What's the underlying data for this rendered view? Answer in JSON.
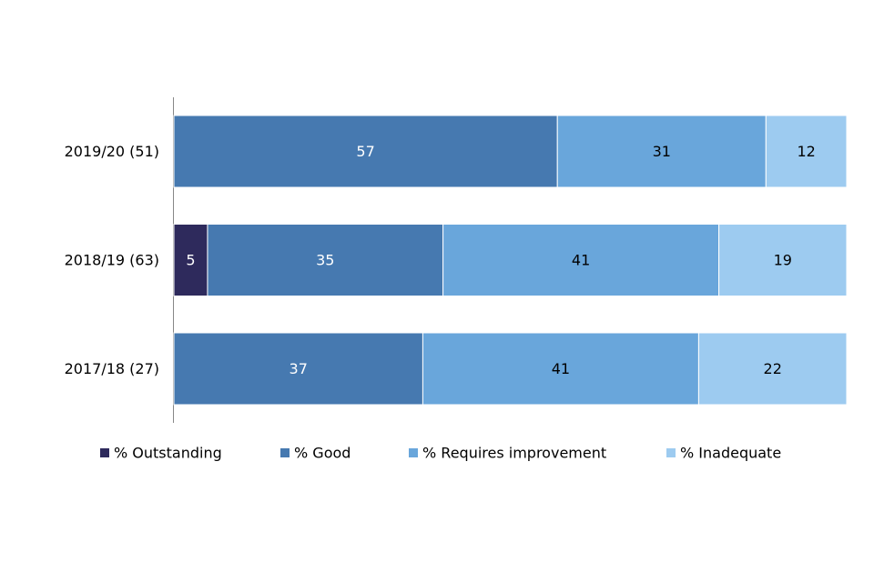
{
  "chart_data": {
    "type": "bar",
    "orientation": "horizontal",
    "stacked": true,
    "percent_stacked": true,
    "categories": [
      "2019/20 (51)",
      "2018/19 (63)",
      "2017/18 (27)"
    ],
    "series": [
      {
        "name": "% Outstanding",
        "color": "#2e2a5c",
        "label_color": "#ffffff",
        "values": [
          0,
          5,
          0
        ]
      },
      {
        "name": "% Good",
        "color": "#4679b0",
        "label_color": "#ffffff",
        "values": [
          57,
          35,
          37
        ]
      },
      {
        "name": "% Requires improvement",
        "color": "#69a6db",
        "label_color": "#000000",
        "values": [
          31,
          41,
          41
        ]
      },
      {
        "name": "% Inadequate",
        "color": "#9dcbf0",
        "label_color": "#000000",
        "values": [
          12,
          19,
          22
        ]
      }
    ],
    "xlim": [
      0,
      100
    ],
    "grid": false,
    "legend_position": "bottom"
  }
}
